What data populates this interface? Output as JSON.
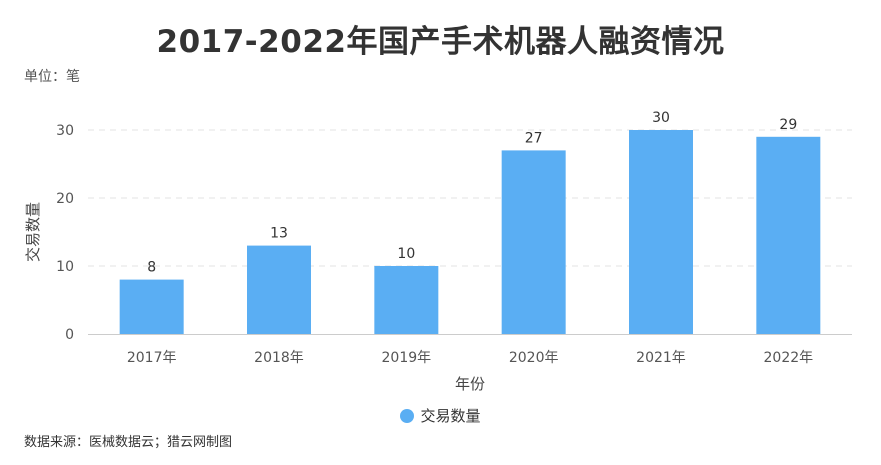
{
  "chart_data": {
    "type": "bar",
    "title": "2017-2022年国产手术机器人融资情况",
    "unit_label": "单位：笔",
    "xlabel": "年份",
    "ylabel": "交易数量",
    "categories": [
      "2017年",
      "2018年",
      "2019年",
      "2020年",
      "2021年",
      "2022年"
    ],
    "series": [
      {
        "name": "交易数量",
        "values": [
          8,
          13,
          10,
          27,
          30,
          29
        ],
        "color": "#5AAEF3"
      }
    ],
    "ylim": [
      0,
      30
    ],
    "yticks": [
      0,
      10,
      20,
      30
    ],
    "grid": true,
    "legend_position": "bottom-center",
    "source": "数据来源：医械数据云；猎云网制图"
  }
}
